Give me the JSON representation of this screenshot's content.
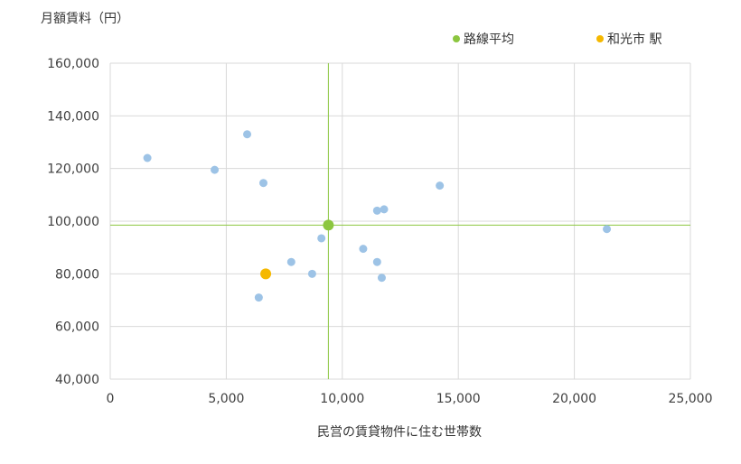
{
  "chart_data": {
    "type": "scatter",
    "title": "",
    "ylabel": "月額賃料（円）",
    "xlabel": "民営の賃貸物件に住む世帯数",
    "xlim": [
      0,
      25000
    ],
    "ylim": [
      40000,
      160000
    ],
    "x_ticks": [
      0,
      5000,
      10000,
      15000,
      20000,
      25000
    ],
    "y_ticks": [
      40000,
      60000,
      80000,
      100000,
      120000,
      140000,
      160000
    ],
    "x_tick_labels": [
      "0",
      "5,000",
      "10,000",
      "15,000",
      "20,000",
      "25,000"
    ],
    "y_tick_labels": [
      "40,000",
      "60,000",
      "80,000",
      "100,000",
      "120,000",
      "140,000",
      "160,000"
    ],
    "grid": true,
    "legend_position": "top-right",
    "series": [
      {
        "color": "#9dc3e6",
        "points": [
          {
            "x": 1600,
            "y": 124000
          },
          {
            "x": 4500,
            "y": 119500
          },
          {
            "x": 5900,
            "y": 133000
          },
          {
            "x": 6600,
            "y": 114500
          },
          {
            "x": 6400,
            "y": 71000
          },
          {
            "x": 7800,
            "y": 84500
          },
          {
            "x": 8700,
            "y": 80000
          },
          {
            "x": 9100,
            "y": 93500
          },
          {
            "x": 10900,
            "y": 89500
          },
          {
            "x": 11500,
            "y": 104000
          },
          {
            "x": 11800,
            "y": 104500
          },
          {
            "x": 11500,
            "y": 84500
          },
          {
            "x": 11700,
            "y": 78500
          },
          {
            "x": 14200,
            "y": 113500
          },
          {
            "x": 21400,
            "y": 97000
          }
        ]
      },
      {
        "name": "路線平均",
        "color": "#8cc63f",
        "points": [
          {
            "x": 9400,
            "y": 98500
          }
        ]
      },
      {
        "name": "和光市 駅",
        "color": "#f5b800",
        "points": [
          {
            "x": 6700,
            "y": 80000
          }
        ]
      }
    ],
    "reference_lines": {
      "color": "#8cc63f",
      "x": 9400,
      "y": 98500
    }
  }
}
